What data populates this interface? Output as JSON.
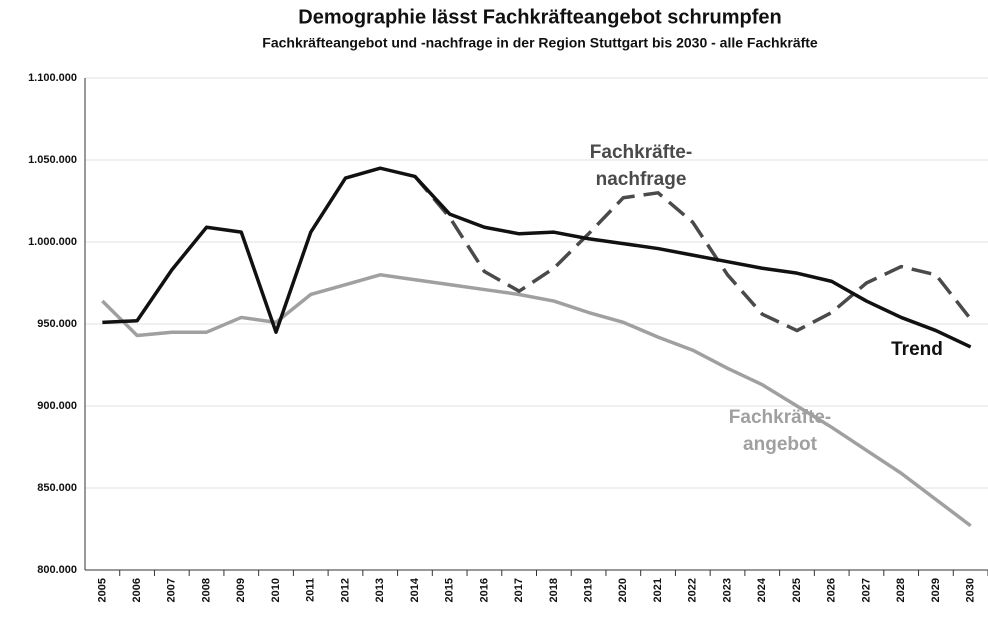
{
  "chart_data": {
    "type": "line",
    "title": "Demographie lässt Fachkräfteangebot schrumpfen",
    "subtitle": "Fachkräfteangebot und -nachfrage in der Region Stuttgart bis 2030 - alle Fachkräfte",
    "categories": [
      "2005",
      "2006",
      "2007",
      "2008",
      "2009",
      "2010",
      "2011",
      "2012",
      "2013",
      "2014",
      "2015",
      "2016",
      "2017",
      "2018",
      "2019",
      "2020",
      "2021",
      "2022",
      "2023",
      "2024",
      "2025",
      "2026",
      "2027",
      "2028",
      "2029",
      "2030"
    ],
    "series": [
      {
        "color": "#a0a0a0",
        "dash": false,
        "values": [
          964000,
          943000,
          945000,
          945000,
          954000,
          951000,
          968000,
          974000,
          980000,
          977000,
          974000,
          971000,
          968000,
          964000,
          957000,
          951000,
          942000,
          934000,
          923000,
          913000,
          900000,
          887000,
          873000,
          859000,
          843000,
          827000
        ]
      },
      {
        "color": "#4a4a4a",
        "dash": true,
        "values": [
          null,
          null,
          null,
          null,
          null,
          null,
          null,
          null,
          null,
          1040000,
          1015000,
          982000,
          970000,
          984000,
          1005000,
          1027000,
          1030000,
          1012000,
          980000,
          956000,
          946000,
          957000,
          975000,
          985000,
          980000,
          953000
        ]
      },
      {
        "color": "#111111",
        "dash": false,
        "values": [
          951000,
          952000,
          983000,
          1009000,
          1006000,
          945000,
          1006000,
          1039000,
          1045000,
          1040000,
          1017000,
          1009000,
          1005000,
          1006000,
          1002000,
          999000,
          996000,
          992000,
          988000,
          984000,
          981000,
          976000,
          964000,
          954000,
          946000,
          936000
        ]
      }
    ],
    "annotations": [
      {
        "lines": [
          "Fachkräfte-",
          "nachfrage"
        ],
        "color": "#4a4a4a"
      },
      {
        "lines": [
          "Trend"
        ],
        "color": "#111111"
      },
      {
        "lines": [
          "Fachkräfte-",
          "angebot"
        ],
        "color": "#a0a0a0"
      }
    ],
    "ylim": [
      800000,
      1100000
    ],
    "yticks": [
      {
        "value": 800000,
        "label": "800.000"
      },
      {
        "value": 850000,
        "label": "850.000"
      },
      {
        "value": 900000,
        "label": "900.000"
      },
      {
        "value": 950000,
        "label": "950.000"
      },
      {
        "value": 1000000,
        "label": "1.000.000"
      },
      {
        "value": 1050000,
        "label": "1.050.000"
      },
      {
        "value": 1100000,
        "label": "1.100.000"
      }
    ],
    "grid": true
  }
}
